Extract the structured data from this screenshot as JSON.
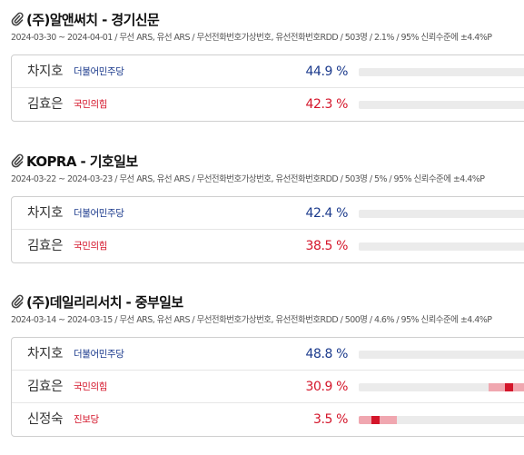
{
  "polls": [
    {
      "title": "(주)알앤써치 - 경기신문",
      "meta": "2024-03-30 ~ 2024-04-01 / 무선 ARS, 유선 ARS / 무선전화번호가상번호, 유선전화번호RDD / 503명 / 2.1% / 95% 신뢰수준에 ±4.4%P",
      "rows": [
        {
          "name": "차지호",
          "party": "더불어민주당",
          "percent": "44.9 %",
          "party_color": "#1b3a8c"
        },
        {
          "name": "김효은",
          "party": "국민의힘",
          "percent": "42.3 %",
          "party_color": "#d4152a"
        }
      ]
    },
    {
      "title": "KOPRA - 기호일보",
      "meta": "2024-03-22 ~ 2024-03-23 / 무선 ARS, 유선 ARS / 무선전화번호가상번호, 유선전화번호RDD / 503명 / 5% / 95% 신뢰수준에 ±4.4%P",
      "rows": [
        {
          "name": "차지호",
          "party": "더불어민주당",
          "percent": "42.4 %",
          "party_color": "#1b3a8c"
        },
        {
          "name": "김효은",
          "party": "국민의힘",
          "percent": "38.5 %",
          "party_color": "#d4152a"
        }
      ]
    },
    {
      "title": "(주)데일리리서치 - 중부일보",
      "meta": "2024-03-14 ~ 2024-03-15 / 무선 ARS, 유선 ARS / 무선전화번호가상번호, 유선전화번호RDD / 500명 / 4.6% / 95% 신뢰수준에 ±4.4%P",
      "rows": [
        {
          "name": "차지호",
          "party": "더불어민주당",
          "percent": "48.8 %",
          "party_color": "#1b3a8c"
        },
        {
          "name": "김효은",
          "party": "국민의힘",
          "percent": "30.9 %",
          "party_color": "#d4152a"
        },
        {
          "name": "신정숙",
          "party": "진보당",
          "percent": "3.5 %",
          "party_color": "#d4152a"
        }
      ]
    }
  ]
}
